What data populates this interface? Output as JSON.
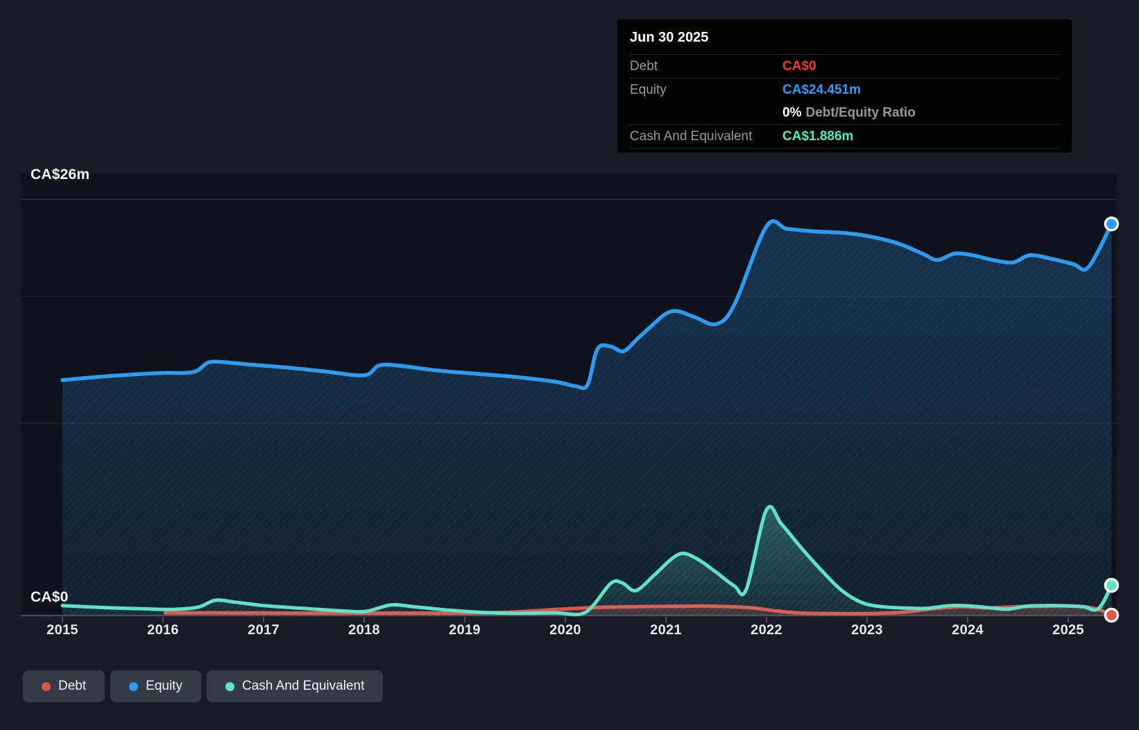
{
  "tooltip": {
    "date": "Jun 30 2025",
    "debt_label": "Debt",
    "debt_value": "CA$0",
    "debt_color": "#f23b30",
    "equity_label": "Equity",
    "equity_value": "CA$24.451m",
    "equity_color": "#2e9df5",
    "ratio_value": "0%",
    "ratio_label": "Debt/Equity Ratio",
    "cash_label": "Cash And Equivalent",
    "cash_value": "CA$1.886m",
    "cash_color": "#54e8c8"
  },
  "axis": {
    "y_max_label": "CA$26m",
    "y_zero_label": "CA$0",
    "years": [
      "2015",
      "2016",
      "2017",
      "2018",
      "2019",
      "2020",
      "2021",
      "2022",
      "2023",
      "2024",
      "2025"
    ]
  },
  "legend": {
    "items": [
      {
        "label": "Debt",
        "color": "#e2544b"
      },
      {
        "label": "Equity",
        "color": "#2e9bf0"
      },
      {
        "label": "Cash And Equivalent",
        "color": "#5fe3c4"
      }
    ]
  },
  "chart_data": {
    "type": "area",
    "unit": "CA$ millions",
    "x_axis": {
      "range": [
        2015,
        2025.5
      ],
      "ticks": [
        2015,
        2016,
        2017,
        2018,
        2019,
        2020,
        2021,
        2022,
        2023,
        2024,
        2025
      ]
    },
    "y_axis": {
      "min": 0,
      "max": 26,
      "labels": [
        "CA$26m",
        "CA$0"
      ],
      "gridlines_shown": true
    },
    "legend_position": "bottom-left",
    "series": [
      {
        "name": "Equity",
        "color": "#2e9bf0",
        "end_marker": true,
        "end_value_label": "CA$24.451m",
        "points": [
          [
            2015.0,
            14.7
          ],
          [
            2015.35,
            14.9
          ],
          [
            2015.7,
            15.05
          ],
          [
            2016.0,
            15.15
          ],
          [
            2016.3,
            15.2
          ],
          [
            2016.45,
            15.8
          ],
          [
            2016.6,
            15.82
          ],
          [
            2016.85,
            15.68
          ],
          [
            2017.2,
            15.5
          ],
          [
            2017.6,
            15.25
          ],
          [
            2018.0,
            15.0
          ],
          [
            2018.15,
            15.62
          ],
          [
            2018.35,
            15.6
          ],
          [
            2018.7,
            15.32
          ],
          [
            2019.1,
            15.1
          ],
          [
            2019.5,
            14.9
          ],
          [
            2019.9,
            14.6
          ],
          [
            2020.1,
            14.32
          ],
          [
            2020.22,
            14.4
          ],
          [
            2020.32,
            16.65
          ],
          [
            2020.45,
            16.8
          ],
          [
            2020.58,
            16.5
          ],
          [
            2020.72,
            17.3
          ],
          [
            2020.86,
            18.1
          ],
          [
            2021.0,
            18.85
          ],
          [
            2021.12,
            19.0
          ],
          [
            2021.3,
            18.6
          ],
          [
            2021.5,
            18.2
          ],
          [
            2021.68,
            19.4
          ],
          [
            2022.0,
            24.3
          ],
          [
            2022.2,
            24.15
          ],
          [
            2022.45,
            24.0
          ],
          [
            2022.75,
            23.9
          ],
          [
            2023.0,
            23.7
          ],
          [
            2023.3,
            23.25
          ],
          [
            2023.55,
            22.6
          ],
          [
            2023.7,
            22.2
          ],
          [
            2023.87,
            22.6
          ],
          [
            2024.05,
            22.5
          ],
          [
            2024.25,
            22.2
          ],
          [
            2024.45,
            22.05
          ],
          [
            2024.62,
            22.5
          ],
          [
            2024.85,
            22.25
          ],
          [
            2025.05,
            21.95
          ],
          [
            2025.2,
            21.75
          ],
          [
            2025.43,
            24.451
          ]
        ]
      },
      {
        "name": "Debt",
        "color": "#e2544b",
        "end_marker": true,
        "end_value_label": "CA$0",
        "points": [
          [
            2016.02,
            0.17
          ],
          [
            2016.5,
            0.17
          ],
          [
            2017.0,
            0.16
          ],
          [
            2017.5,
            0.15
          ],
          [
            2018.0,
            0.15
          ],
          [
            2018.5,
            0.15
          ],
          [
            2019.0,
            0.15
          ],
          [
            2019.4,
            0.2
          ],
          [
            2019.75,
            0.32
          ],
          [
            2020.1,
            0.45
          ],
          [
            2020.4,
            0.52
          ],
          [
            2020.8,
            0.56
          ],
          [
            2021.1,
            0.58
          ],
          [
            2021.5,
            0.58
          ],
          [
            2021.85,
            0.48
          ],
          [
            2022.1,
            0.28
          ],
          [
            2022.35,
            0.15
          ],
          [
            2022.7,
            0.12
          ],
          [
            2023.0,
            0.12
          ],
          [
            2023.35,
            0.2
          ],
          [
            2023.65,
            0.42
          ],
          [
            2023.95,
            0.55
          ],
          [
            2024.2,
            0.48
          ],
          [
            2024.5,
            0.55
          ],
          [
            2024.8,
            0.58
          ],
          [
            2025.05,
            0.6
          ],
          [
            2025.28,
            0.42
          ],
          [
            2025.43,
            0.02
          ]
        ]
      },
      {
        "name": "Cash And Equivalent",
        "color": "#5fe3c4",
        "end_marker": true,
        "end_value_label": "CA$1.886m",
        "points": [
          [
            2015.0,
            0.62
          ],
          [
            2015.4,
            0.5
          ],
          [
            2015.8,
            0.42
          ],
          [
            2016.1,
            0.38
          ],
          [
            2016.35,
            0.52
          ],
          [
            2016.52,
            0.95
          ],
          [
            2016.72,
            0.83
          ],
          [
            2017.0,
            0.62
          ],
          [
            2017.4,
            0.44
          ],
          [
            2017.8,
            0.28
          ],
          [
            2018.02,
            0.26
          ],
          [
            2018.27,
            0.66
          ],
          [
            2018.5,
            0.54
          ],
          [
            2018.85,
            0.33
          ],
          [
            2019.15,
            0.2
          ],
          [
            2019.5,
            0.14
          ],
          [
            2019.9,
            0.17
          ],
          [
            2020.2,
            0.2
          ],
          [
            2020.45,
            2.0
          ],
          [
            2020.57,
            2.02
          ],
          [
            2020.7,
            1.55
          ],
          [
            2020.88,
            2.5
          ],
          [
            2021.05,
            3.5
          ],
          [
            2021.17,
            3.88
          ],
          [
            2021.32,
            3.5
          ],
          [
            2021.5,
            2.7
          ],
          [
            2021.68,
            1.85
          ],
          [
            2021.8,
            1.65
          ],
          [
            2022.0,
            6.6
          ],
          [
            2022.15,
            5.7
          ],
          [
            2022.35,
            4.2
          ],
          [
            2022.55,
            2.8
          ],
          [
            2022.75,
            1.55
          ],
          [
            2022.95,
            0.8
          ],
          [
            2023.15,
            0.55
          ],
          [
            2023.4,
            0.46
          ],
          [
            2023.6,
            0.45
          ],
          [
            2023.82,
            0.62
          ],
          [
            2024.02,
            0.6
          ],
          [
            2024.22,
            0.48
          ],
          [
            2024.4,
            0.4
          ],
          [
            2024.58,
            0.58
          ],
          [
            2024.78,
            0.62
          ],
          [
            2025.0,
            0.6
          ],
          [
            2025.15,
            0.55
          ],
          [
            2025.3,
            0.42
          ],
          [
            2025.43,
            1.886
          ]
        ]
      }
    ]
  }
}
